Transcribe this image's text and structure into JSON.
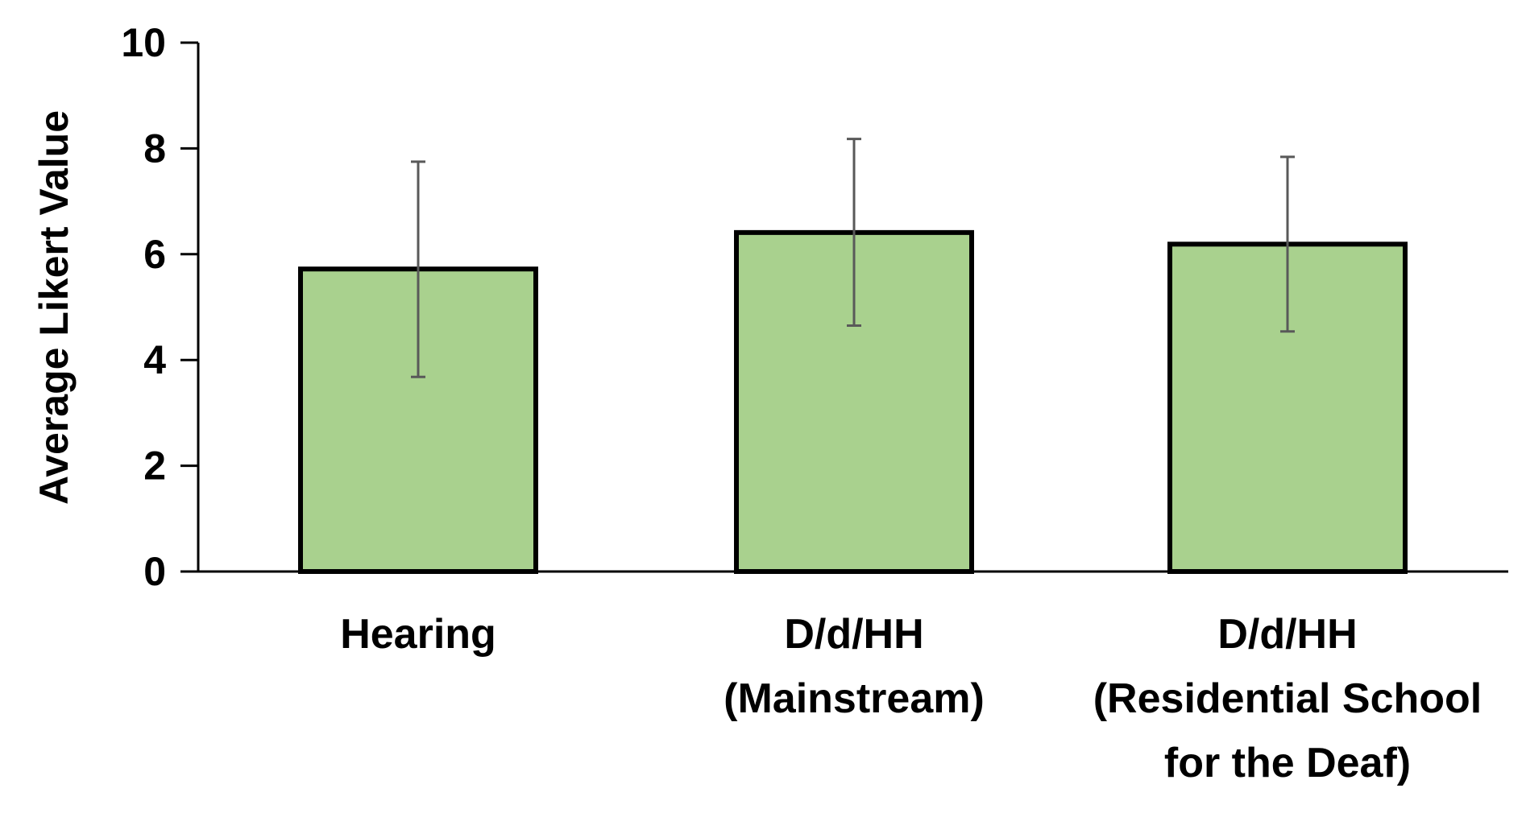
{
  "chart_data": {
    "type": "bar",
    "title": "",
    "xlabel": "",
    "ylabel": "Average Likert Value",
    "ylim": [
      0,
      10
    ],
    "yticks": [
      "0",
      "2",
      "4",
      "6",
      "8",
      "10"
    ],
    "categories": [
      [
        "Hearing"
      ],
      [
        "D/d/HH",
        "(Mainstream)"
      ],
      [
        "D/d/HH",
        "(Residential School",
        "for the Deaf)"
      ]
    ],
    "values": [
      5.72,
      6.41,
      6.19
    ],
    "error_bars": [
      {
        "low": 3.68,
        "high": 7.75
      },
      {
        "low": 4.65,
        "high": 8.18
      },
      {
        "low": 4.54,
        "high": 7.84
      }
    ],
    "colors": {
      "bar_fill": "#a9d18e",
      "bar_stroke": "#000000",
      "error_bar": "#595959",
      "axis": "#000000"
    }
  }
}
